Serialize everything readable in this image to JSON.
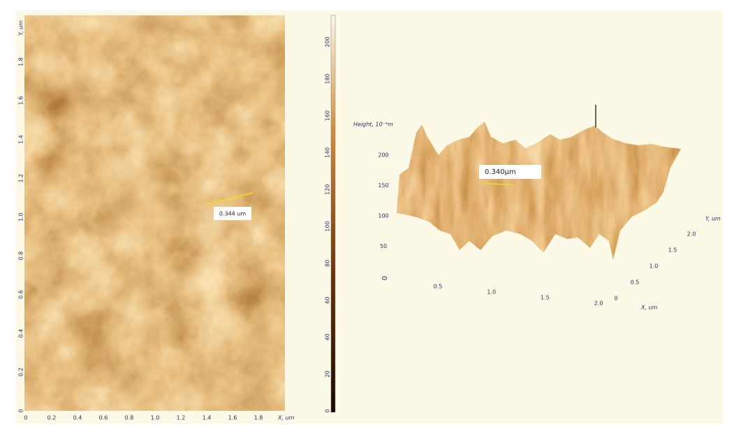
{
  "left_image": {
    "x_axis_label": "X, um",
    "y_axis_label": "Y, um",
    "x_ticks": [
      "0",
      "0.2",
      "0.4",
      "0.6",
      "0.8",
      "1.0",
      "1.2",
      "1.4",
      "1.6",
      "1.8"
    ],
    "y_ticks": [
      "0",
      "0.2",
      "0.4",
      "0.6",
      "0.8",
      "1.0",
      "1.2",
      "1.4",
      "1.6",
      "1.8"
    ],
    "colorbar_ticks": [
      "0",
      "20",
      "40",
      "60",
      "80",
      "100",
      "120",
      "140",
      "160",
      "180",
      "200"
    ],
    "measurement_label": "0.344 um"
  },
  "surface_3d": {
    "z_axis_label": "Height, 10⁻⁹m",
    "z_ticks": [
      "200",
      "150",
      "100",
      "50"
    ],
    "origin_label": "0",
    "x_axis_label": "X, um",
    "x_ticks": [
      "0.5",
      "1.0",
      "1.5",
      "2.0"
    ],
    "y_axis_label": "Y, um",
    "y_ticks": [
      "0",
      "0.5",
      "1.0",
      "1.5",
      "2.0"
    ],
    "measurement_label": "0.340µm"
  }
}
